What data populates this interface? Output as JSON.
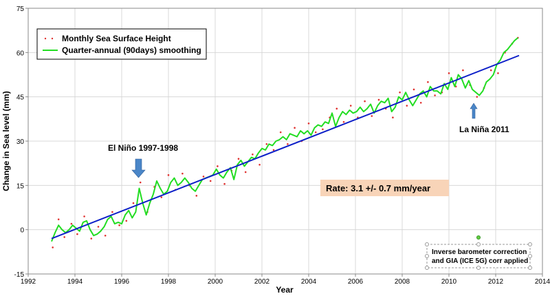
{
  "chart_data": {
    "type": "line",
    "xlabel": "Year",
    "ylabel": "Change in Sea level (mm)",
    "xlim": [
      1992,
      2014
    ],
    "ylim": [
      -15,
      75
    ],
    "x_ticks": [
      "1992",
      "1994",
      "1996",
      "1998",
      "2000",
      "2002",
      "2004",
      "2006",
      "2008",
      "2010",
      "2012",
      "2014"
    ],
    "y_ticks": [
      "-15",
      "0",
      "15",
      "30",
      "45",
      "60",
      "75"
    ],
    "grid": true,
    "legend": "top-left",
    "legend_entries": [
      "Monthly Sea Surface Height",
      "Quarter-annual (90days) smoothing"
    ],
    "colors": {
      "monthly": "#e0312f",
      "smoothing": "#22dd22",
      "trend": "#0d1fc8",
      "arrow": "#4a86c8",
      "rate_box": "#f8d4b8"
    },
    "series": [
      {
        "name": "Quarter-annual (90days) smoothing",
        "x": [
          1993.0,
          1993.15,
          1993.3,
          1993.45,
          1993.6,
          1993.75,
          1993.9,
          1994.05,
          1994.2,
          1994.35,
          1994.5,
          1994.65,
          1994.8,
          1994.95,
          1995.1,
          1995.25,
          1995.4,
          1995.55,
          1995.7,
          1995.85,
          1996.0,
          1996.15,
          1996.3,
          1996.45,
          1996.6,
          1996.75,
          1996.9,
          1997.05,
          1997.2,
          1997.35,
          1997.5,
          1997.65,
          1997.8,
          1997.95,
          1998.1,
          1998.25,
          1998.4,
          1998.55,
          1998.7,
          1998.85,
          1999.0,
          1999.15,
          1999.3,
          1999.45,
          1999.6,
          1999.75,
          1999.9,
          2000.05,
          2000.2,
          2000.35,
          2000.5,
          2000.65,
          2000.8,
          2000.95,
          2001.1,
          2001.25,
          2001.4,
          2001.55,
          2001.7,
          2001.85,
          2002.0,
          2002.15,
          2002.3,
          2002.45,
          2002.6,
          2002.75,
          2002.9,
          2003.05,
          2003.2,
          2003.35,
          2003.5,
          2003.65,
          2003.8,
          2003.95,
          2004.1,
          2004.25,
          2004.4,
          2004.55,
          2004.7,
          2004.85,
          2005.0,
          2005.15,
          2005.3,
          2005.45,
          2005.6,
          2005.75,
          2005.9,
          2006.05,
          2006.2,
          2006.35,
          2006.5,
          2006.65,
          2006.8,
          2006.95,
          2007.1,
          2007.25,
          2007.4,
          2007.55,
          2007.7,
          2007.85,
          2008.0,
          2008.15,
          2008.3,
          2008.45,
          2008.6,
          2008.75,
          2008.9,
          2009.05,
          2009.2,
          2009.35,
          2009.5,
          2009.65,
          2009.8,
          2009.95,
          2010.1,
          2010.25,
          2010.4,
          2010.55,
          2010.7,
          2010.85,
          2011.0,
          2011.15,
          2011.3,
          2011.45,
          2011.6,
          2011.75,
          2011.9,
          2012.05,
          2012.2,
          2012.35,
          2012.5,
          2012.65,
          2012.8,
          2012.95
        ],
        "y": [
          -4.0,
          -1.0,
          1.5,
          0.0,
          -1.0,
          0.0,
          1.5,
          0.5,
          -0.5,
          2.5,
          3.0,
          0.0,
          -2.0,
          -1.5,
          -0.5,
          1.0,
          3.5,
          4.5,
          2.0,
          2.5,
          2.0,
          5.0,
          6.5,
          4.0,
          6.0,
          14.0,
          9.0,
          5.0,
          9.0,
          12.0,
          16.5,
          14.0,
          12.0,
          13.0,
          16.0,
          17.5,
          15.0,
          16.0,
          17.5,
          16.0,
          14.0,
          13.0,
          15.0,
          17.0,
          17.5,
          18.0,
          18.5,
          20.5,
          18.5,
          17.5,
          19.5,
          21.0,
          17.0,
          22.0,
          23.5,
          21.5,
          23.0,
          24.5,
          24.0,
          26.0,
          27.5,
          27.0,
          29.0,
          28.5,
          30.0,
          30.5,
          31.5,
          30.5,
          32.5,
          32.0,
          31.5,
          33.5,
          32.5,
          33.5,
          32.0,
          34.5,
          35.5,
          35.0,
          36.5,
          36.0,
          39.5,
          35.0,
          38.0,
          40.0,
          39.0,
          40.5,
          39.5,
          40.0,
          41.5,
          40.0,
          41.0,
          42.5,
          39.5,
          42.0,
          43.5,
          43.0,
          44.5,
          40.0,
          41.5,
          45.0,
          44.0,
          46.5,
          44.0,
          42.0,
          44.0,
          46.0,
          47.0,
          45.0,
          48.5,
          47.0,
          47.0,
          46.0,
          49.5,
          47.5,
          51.5,
          48.5,
          52.5,
          51.0,
          48.0,
          50.5,
          47.5,
          46.5,
          45.5,
          47.0,
          50.0,
          51.0,
          52.5,
          56.0,
          57.5,
          60.0,
          61.0,
          62.5,
          64.0,
          65.0
        ]
      },
      {
        "name": "Monthly Sea Surface Height",
        "x": [
          1993.05,
          1993.3,
          1993.55,
          1993.85,
          1994.1,
          1994.4,
          1994.7,
          1995.0,
          1995.3,
          1995.6,
          1995.9,
          1996.2,
          1996.5,
          1996.8,
          1997.1,
          1997.4,
          1997.7,
          1998.0,
          1998.3,
          1998.6,
          1998.9,
          1999.2,
          1999.5,
          1999.8,
          2000.1,
          2000.4,
          2000.7,
          2001.0,
          2001.3,
          2001.6,
          2001.9,
          2002.2,
          2002.5,
          2002.8,
          2003.1,
          2003.4,
          2003.7,
          2004.0,
          2004.3,
          2004.6,
          2004.9,
          2005.2,
          2005.5,
          2005.8,
          2006.1,
          2006.4,
          2006.7,
          2007.0,
          2007.3,
          2007.6,
          2007.9,
          2008.2,
          2008.5,
          2008.8,
          2009.1,
          2009.4,
          2009.7,
          2010.0,
          2010.3,
          2010.6,
          2010.9,
          2011.2,
          2011.5,
          2011.8,
          2012.1,
          2012.4,
          2012.7,
          2012.95
        ],
        "y": [
          -6.0,
          3.5,
          -2.5,
          2.0,
          -1.5,
          4.5,
          -3.0,
          1.0,
          -2.0,
          6.0,
          1.5,
          3.0,
          9.0,
          16.0,
          6.0,
          14.5,
          11.0,
          18.5,
          13.5,
          19.0,
          15.0,
          11.5,
          18.0,
          16.5,
          21.5,
          15.5,
          20.0,
          24.0,
          19.5,
          25.5,
          22.0,
          29.0,
          27.0,
          33.0,
          29.0,
          34.5,
          30.0,
          36.0,
          33.0,
          34.0,
          38.0,
          41.0,
          36.5,
          42.0,
          38.0,
          43.5,
          38.5,
          44.0,
          41.0,
          38.0,
          46.5,
          42.0,
          47.5,
          43.0,
          50.0,
          45.5,
          46.5,
          53.0,
          48.5,
          54.0,
          49.0,
          45.0,
          48.0,
          54.0,
          53.0,
          60.0,
          63.0,
          65.0
        ]
      },
      {
        "name": "trend",
        "x": [
          1993.0,
          2013.0
        ],
        "y": [
          -3.0,
          59.0
        ]
      }
    ],
    "annotations": {
      "el_nino": "El Niño 1997-1998",
      "la_nina": "La Niña 2011",
      "rate": "Rate: 3.1 +/- 0.7 mm/year",
      "note_line1": "Inverse barometer correction",
      "note_line2": "and GIA (ICE 5G) corr applied"
    }
  }
}
